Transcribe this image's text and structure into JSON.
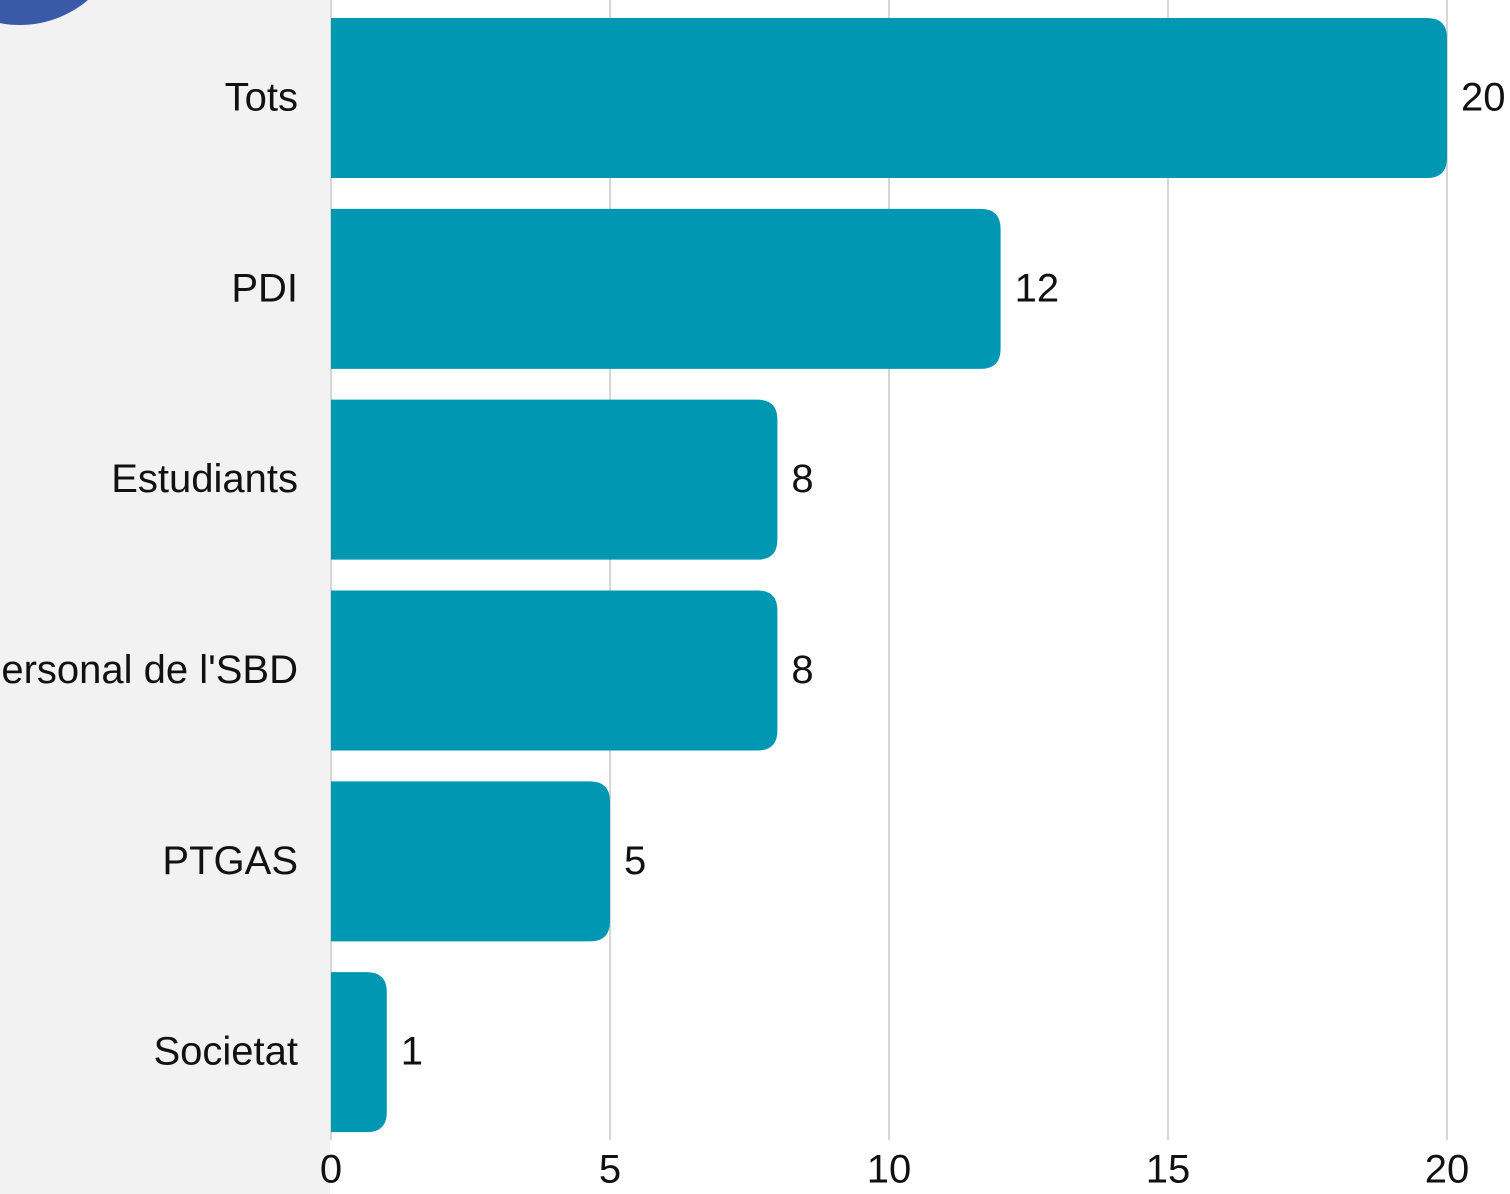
{
  "chart_data": {
    "type": "bar",
    "orientation": "horizontal",
    "categories": [
      "Tots",
      "PDI",
      "Estudiants",
      "Personal de l'SBD",
      "PTGAS",
      "Societat"
    ],
    "values": [
      20,
      12,
      8,
      8,
      5,
      1
    ],
    "color": "#0097b2",
    "xlim": [
      0,
      20
    ],
    "xticks": [
      0,
      5,
      10,
      15,
      20
    ],
    "grid": true
  }
}
